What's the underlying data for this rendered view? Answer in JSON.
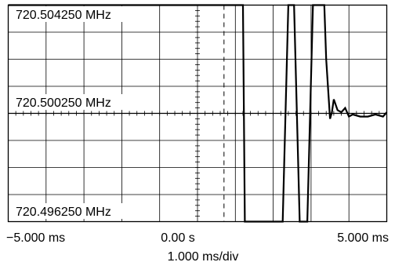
{
  "chart_data": {
    "type": "line",
    "x_tick_labels": [
      "−5.000 ms",
      "0.00 s",
      "5.000 ms"
    ],
    "x_scale_label": "1.000 ms/div",
    "y_tick_labels": [
      "720.504250 MHz",
      "720.500250 MHz",
      "720.496250 MHz"
    ],
    "xlim": [
      -5.0,
      5.0
    ],
    "ylim": [
      720.49525,
      720.50525
    ],
    "grid": true,
    "marker_time_ms": 0.7,
    "series": [
      {
        "x": [
          -5.0,
          -4.0,
          -3.0,
          -2.0,
          -1.0,
          0.0,
          0.75,
          1.2,
          1.25,
          2.25,
          2.4,
          2.55,
          2.7,
          2.9,
          3.05,
          3.2,
          3.35,
          3.4,
          3.5,
          3.55,
          3.6,
          3.7,
          3.8,
          3.9,
          4.0,
          4.1,
          4.3,
          4.5,
          4.7,
          4.9,
          5.0
        ],
        "y": [
          720.50525,
          720.50525,
          720.50525,
          720.50525,
          720.50525,
          720.50525,
          720.50525,
          720.50525,
          720.49525,
          720.49525,
          720.50525,
          720.50525,
          720.49525,
          720.49525,
          720.50525,
          720.50525,
          720.50525,
          720.50275,
          720.5,
          720.5003,
          720.5009,
          720.5004,
          720.5003,
          720.5005,
          720.5001,
          720.5002,
          720.5001,
          720.5001,
          720.5002,
          720.5001,
          720.5003
        ]
      }
    ]
  }
}
